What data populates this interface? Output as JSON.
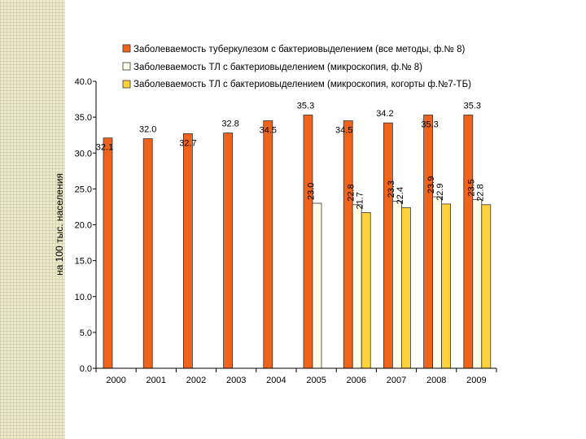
{
  "chart_data": {
    "type": "bar",
    "ylabel": "на 100 тыс. населения",
    "xlabel": "",
    "ylim": [
      0,
      40
    ],
    "yticks": [
      "0.0",
      "5.0",
      "10.0",
      "15.0",
      "20.0",
      "25.0",
      "30.0",
      "35.0",
      "40.0"
    ],
    "grid": false,
    "legend_position": "top",
    "categories": [
      "2000",
      "2001",
      "2002",
      "2003",
      "2004",
      "2005",
      "2006",
      "2007",
      "2008",
      "2009"
    ],
    "series": [
      {
        "name": "Заболеваемость туберкулезом с бактериовыделением (все методы, ф.№ 8)",
        "color": "#f0631a",
        "values": [
          32.1,
          32.0,
          32.7,
          32.8,
          34.5,
          35.3,
          34.5,
          34.2,
          35.3,
          35.3
        ],
        "labels": [
          "32.1",
          "32.0",
          "32.7",
          "32.8",
          "34.5",
          "35.3",
          "34.5",
          "34.2",
          "35.3",
          "35.3"
        ]
      },
      {
        "name": "Заболеваемость ТЛ с бактериовыделением (микроскопия, ф.№ 8)",
        "color": "#ffffea",
        "values": [
          null,
          null,
          null,
          null,
          null,
          23.0,
          22.8,
          23.3,
          23.9,
          23.5
        ],
        "labels": [
          null,
          null,
          null,
          null,
          null,
          "23.0",
          "22.8",
          "23.3",
          "23.9",
          "23.5"
        ]
      },
      {
        "name": "Заболеваемость ТЛ с бактериовыделением (микроскопия, когорты ф.№7-ТБ)",
        "color": "#ffd23a",
        "values": [
          null,
          null,
          null,
          null,
          null,
          null,
          21.7,
          22.4,
          22.9,
          22.8
        ],
        "labels": [
          null,
          null,
          null,
          null,
          null,
          null,
          "21.7",
          "22.4",
          "22.9",
          "22.8"
        ]
      }
    ]
  }
}
